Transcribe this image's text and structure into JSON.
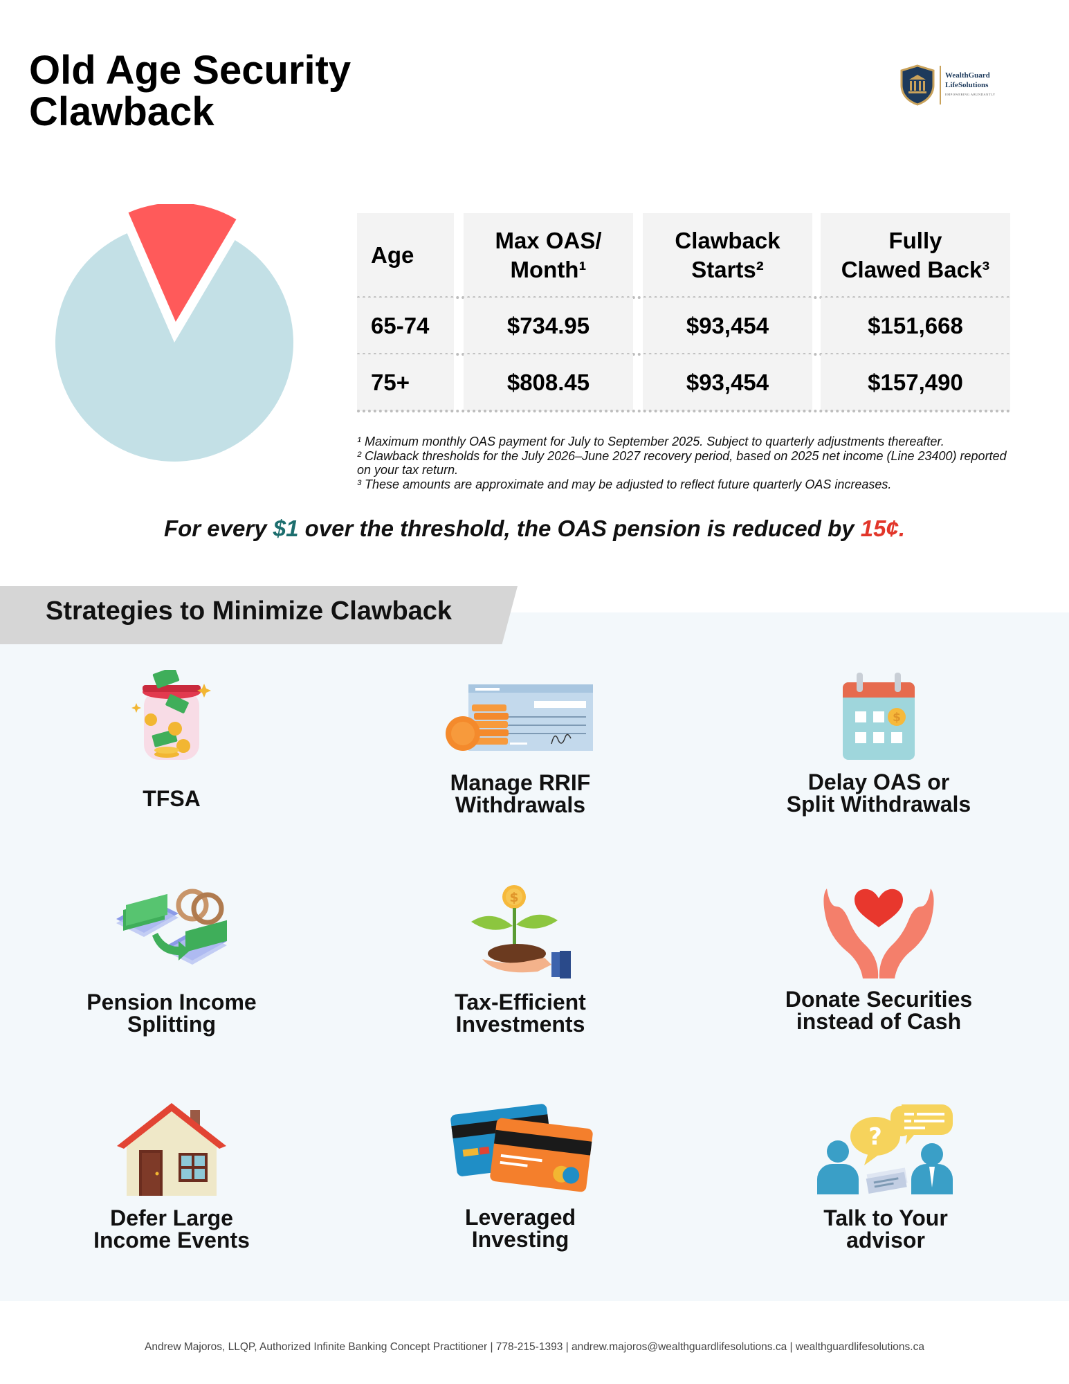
{
  "title": [
    "Old Age Security",
    "Clawback"
  ],
  "logo": {
    "name_line1": "WealthGuard",
    "name_line2": "LifeSolutions",
    "tagline": "EMPOWERING ABUNDANTLY",
    "colors": {
      "navy": "#1d3a5c",
      "gold": "#c9a25b"
    }
  },
  "pie": {
    "slices": [
      {
        "value": 85,
        "color": "#c3e0e6"
      },
      {
        "value": 15,
        "color": "#ff5a5a",
        "exploded": true
      }
    ]
  },
  "table": {
    "headers": [
      [
        "Age"
      ],
      [
        "Max OAS/",
        "Month¹"
      ],
      [
        "Clawback",
        "Starts²"
      ],
      [
        "Fully",
        "Clawed Back³"
      ]
    ],
    "rows": [
      [
        "65-74",
        "$734.95",
        "$93,454",
        "$151,668"
      ],
      [
        "75+",
        "$808.45",
        "$93,454",
        "$157,490"
      ]
    ]
  },
  "footnotes": [
    "¹ Maximum monthly OAS payment for July to September 2025. Subject to quarterly adjustments thereafter.",
    "² Clawback thresholds for the July 2026–June 2027 recovery period, based on 2025 net income (Line 23400) reported on your tax return.",
    "³ These amounts are approximate and may be adjusted to reflect future quarterly OAS increases."
  ],
  "tagline": {
    "part1": "For every ",
    "dollar": "$1",
    "part2": " over the threshold, the OAS pension is reduced by ",
    "cents": "15¢."
  },
  "strategies": {
    "heading": "Strategies to Minimize Clawback",
    "items": [
      {
        "icon": "money-jar-icon",
        "lines": [
          "TFSA"
        ]
      },
      {
        "icon": "cheque-coins-icon",
        "lines": [
          "Manage RRIF",
          "Withdrawals"
        ]
      },
      {
        "icon": "calendar-dollar-icon",
        "lines": [
          "Delay OAS or",
          "Split Withdrawals"
        ]
      },
      {
        "icon": "rings-money-transfer-icon",
        "lines": [
          "Pension Income",
          "Splitting"
        ]
      },
      {
        "icon": "plant-coin-hand-icon",
        "lines": [
          "Tax-Efficient",
          "Investments"
        ]
      },
      {
        "icon": "hands-heart-icon",
        "lines": [
          "Donate Securities",
          "instead of Cash"
        ]
      },
      {
        "icon": "house-icon",
        "lines": [
          "Defer Large",
          "Income Events"
        ]
      },
      {
        "icon": "credit-cards-icon",
        "lines": [
          "Leveraged",
          "Investing"
        ]
      },
      {
        "icon": "advisor-chat-icon",
        "lines": [
          "Talk to Your",
          "advisor"
        ]
      }
    ]
  },
  "footer": "Andrew Majoros, LLQP, Authorized Infinite Banking Concept Practitioner | 778-215-1393 | andrew.majoros@wealthguardlifesolutions.ca | wealthguardlifesolutions.ca"
}
